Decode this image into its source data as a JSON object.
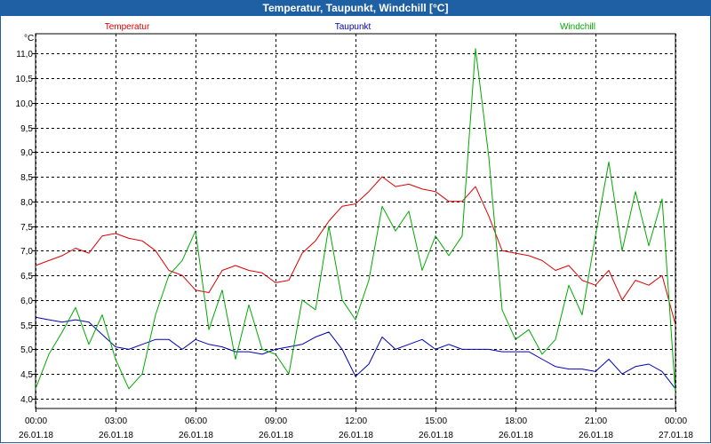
{
  "window": {
    "title": "Temperatur, Taupunkt, Windchill [°C]"
  },
  "chart_data": {
    "type": "line",
    "title": "Temperatur, Taupunkt, Windchill [°C]",
    "ylabel": "°C",
    "xlabel": "",
    "ylim": [
      3.8,
      11.4
    ],
    "xlim": [
      0,
      24
    ],
    "grid": true,
    "y_ticks": [
      {
        "value": 4.0,
        "label": "4,0"
      },
      {
        "value": 4.5,
        "label": "4,5"
      },
      {
        "value": 5.0,
        "label": "5,0"
      },
      {
        "value": 5.5,
        "label": "5,5"
      },
      {
        "value": 6.0,
        "label": "6,0"
      },
      {
        "value": 6.5,
        "label": "6,5"
      },
      {
        "value": 7.0,
        "label": "7,0"
      },
      {
        "value": 7.5,
        "label": "7,5"
      },
      {
        "value": 8.0,
        "label": "8,0"
      },
      {
        "value": 8.5,
        "label": "8,5"
      },
      {
        "value": 9.0,
        "label": "9,0"
      },
      {
        "value": 9.5,
        "label": "9,5"
      },
      {
        "value": 10.0,
        "label": "10,0"
      },
      {
        "value": 10.5,
        "label": "10,5"
      },
      {
        "value": 11.0,
        "label": "11,0"
      }
    ],
    "x_ticks": [
      {
        "value": 0,
        "time": "00:00",
        "date": "26.01.18"
      },
      {
        "value": 3,
        "time": "03:00",
        "date": "26.01.18"
      },
      {
        "value": 6,
        "time": "06:00",
        "date": "26.01.18"
      },
      {
        "value": 9,
        "time": "09:00",
        "date": "26.01.18"
      },
      {
        "value": 12,
        "time": "12:00",
        "date": "26.01.18"
      },
      {
        "value": 15,
        "time": "15:00",
        "date": "26.01.18"
      },
      {
        "value": 18,
        "time": "18:00",
        "date": "26.01.18"
      },
      {
        "value": 21,
        "time": "21:00",
        "date": "26.01.18"
      },
      {
        "value": 24,
        "time": "00:00",
        "date": "27.01.18"
      }
    ],
    "series": [
      {
        "name": "Temperatur",
        "color": "#dd0000",
        "x": [
          0,
          0.5,
          1,
          1.5,
          2,
          2.5,
          3,
          3.5,
          4,
          4.5,
          5,
          5.5,
          6,
          6.5,
          7,
          7.5,
          8,
          8.5,
          9,
          9.5,
          10,
          10.5,
          11,
          11.5,
          12,
          12.5,
          13,
          13.5,
          14,
          14.5,
          15,
          15.5,
          16,
          16.5,
          17,
          17.5,
          18,
          18.5,
          19,
          19.5,
          20,
          20.5,
          21,
          21.5,
          22,
          22.5,
          23,
          23.5,
          24
        ],
        "values": [
          6.7,
          6.8,
          6.9,
          7.05,
          6.95,
          7.3,
          7.35,
          7.25,
          7.2,
          7.0,
          6.6,
          6.5,
          6.2,
          6.15,
          6.6,
          6.7,
          6.6,
          6.55,
          6.35,
          6.4,
          6.95,
          7.2,
          7.6,
          7.9,
          7.95,
          8.2,
          8.5,
          8.3,
          8.35,
          8.25,
          8.2,
          8.0,
          8.0,
          8.3,
          7.7,
          7.0,
          6.95,
          6.9,
          6.8,
          6.6,
          6.7,
          6.4,
          6.3,
          6.6,
          6.0,
          6.4,
          6.3,
          6.5,
          5.5
        ]
      },
      {
        "name": "Taupunkt",
        "color": "#0000bb",
        "x": [
          0,
          0.5,
          1,
          1.5,
          2,
          2.5,
          3,
          3.5,
          4,
          4.5,
          5,
          5.5,
          6,
          6.5,
          7,
          7.5,
          8,
          8.5,
          9,
          9.5,
          10,
          10.5,
          11,
          11.5,
          12,
          12.5,
          13,
          13.5,
          14,
          14.5,
          15,
          15.5,
          16,
          16.5,
          17,
          17.5,
          18,
          18.5,
          19,
          19.5,
          20,
          20.5,
          21,
          21.5,
          22,
          22.5,
          23,
          23.5,
          24
        ],
        "values": [
          5.65,
          5.6,
          5.55,
          5.6,
          5.55,
          5.3,
          5.05,
          5.0,
          5.1,
          5.2,
          5.2,
          5.0,
          5.2,
          5.1,
          5.05,
          4.95,
          4.95,
          4.9,
          5.0,
          5.05,
          5.1,
          5.25,
          5.35,
          5.0,
          4.45,
          4.7,
          5.25,
          5.0,
          5.1,
          5.2,
          5.0,
          5.1,
          5.0,
          5.0,
          5.0,
          4.95,
          4.95,
          4.95,
          4.8,
          4.65,
          4.6,
          4.6,
          4.55,
          4.8,
          4.5,
          4.65,
          4.7,
          4.55,
          4.2
        ]
      },
      {
        "name": "Windchill",
        "color": "#00aa00",
        "x": [
          0,
          0.5,
          1,
          1.5,
          2,
          2.5,
          3,
          3.5,
          4,
          4.5,
          5,
          5.5,
          6,
          6.5,
          7,
          7.5,
          8,
          8.5,
          9,
          9.5,
          10,
          10.5,
          11,
          11.5,
          12,
          12.5,
          13,
          13.5,
          14,
          14.5,
          15,
          15.5,
          16,
          16.5,
          17,
          17.5,
          18,
          18.5,
          19,
          19.5,
          20,
          20.5,
          21,
          21.5,
          22,
          22.5,
          23,
          23.5,
          24
        ],
        "values": [
          4.2,
          4.9,
          5.35,
          5.85,
          5.1,
          5.7,
          4.8,
          4.2,
          4.5,
          5.7,
          6.5,
          6.8,
          7.4,
          5.4,
          6.2,
          4.8,
          5.9,
          5.0,
          4.9,
          4.5,
          6.0,
          5.8,
          7.5,
          6.0,
          5.6,
          6.4,
          7.9,
          7.4,
          7.8,
          6.6,
          7.3,
          6.9,
          7.3,
          11.1,
          8.9,
          5.8,
          5.2,
          5.4,
          4.9,
          5.2,
          6.3,
          5.7,
          7.3,
          8.8,
          7.0,
          8.2,
          7.1,
          8.05,
          4.1
        ]
      }
    ]
  }
}
